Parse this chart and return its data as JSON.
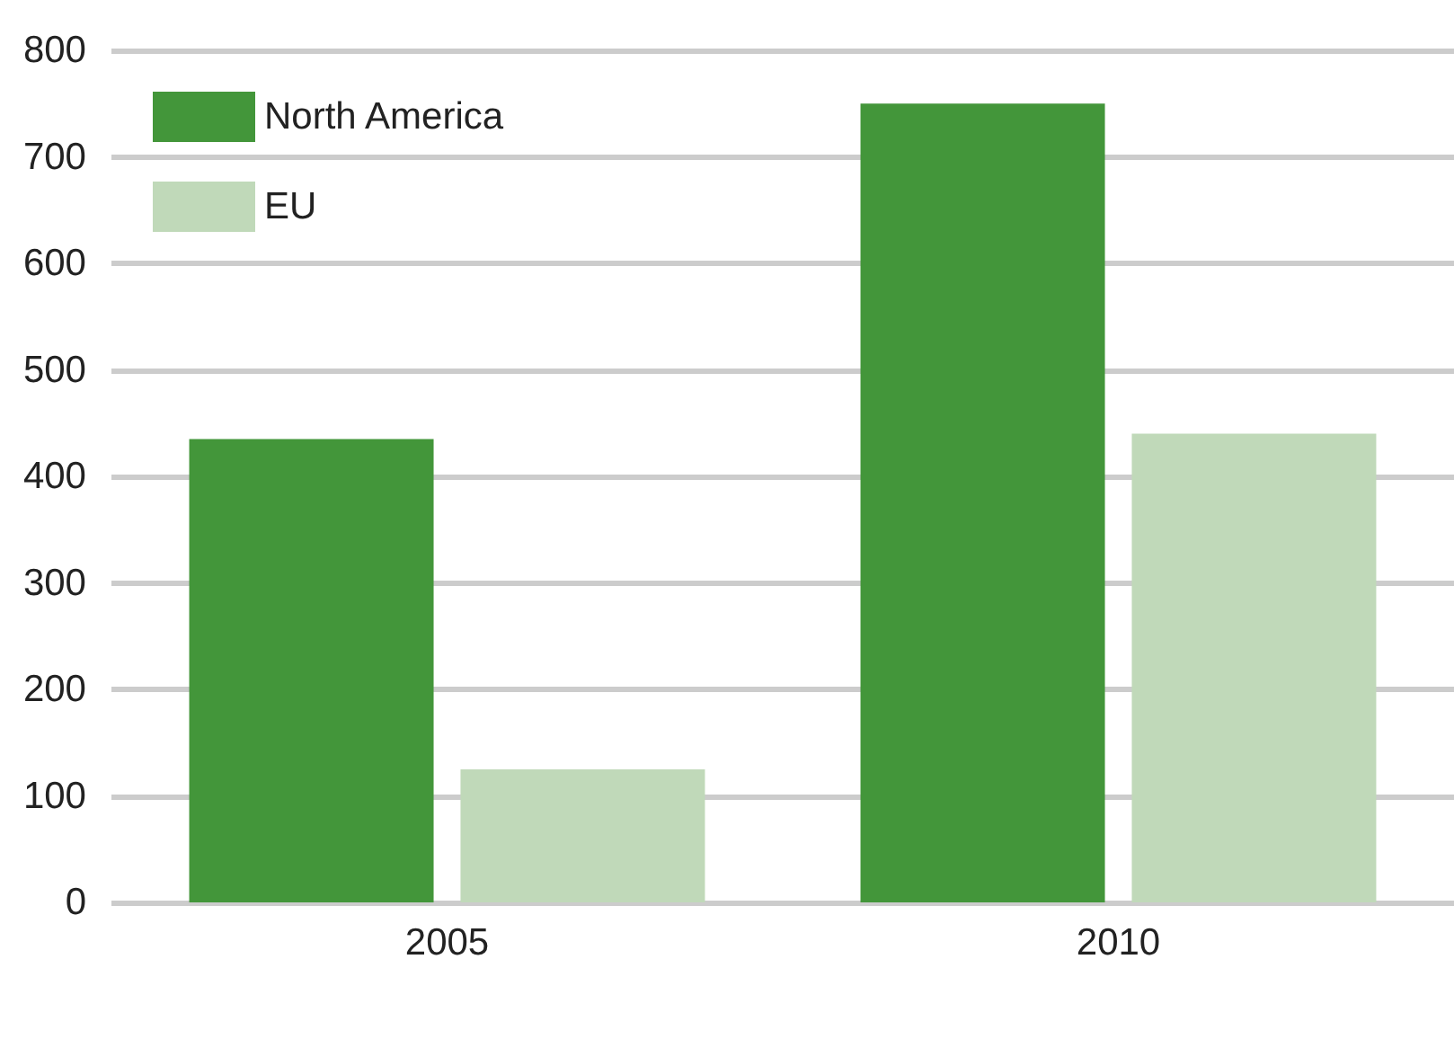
{
  "chart_data": {
    "type": "bar",
    "categories": [
      "2005",
      "2010"
    ],
    "series": [
      {
        "name": "North America",
        "color": "#43963a",
        "values": [
          435,
          750
        ]
      },
      {
        "name": "EU",
        "color": "#c0d9b9",
        "values": [
          125,
          440
        ]
      }
    ],
    "ylim": [
      0,
      800
    ],
    "yticks": [
      0,
      100,
      200,
      300,
      400,
      500,
      600,
      700,
      800
    ],
    "grid": "y",
    "legend": "top left"
  }
}
